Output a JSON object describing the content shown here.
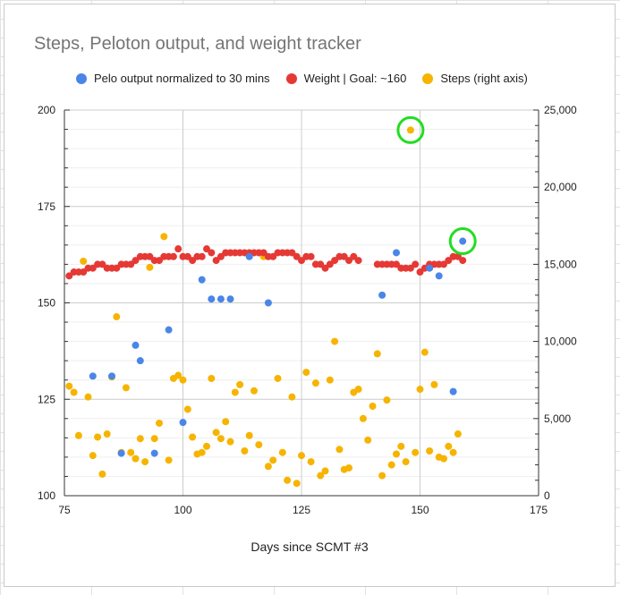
{
  "chart_data": {
    "type": "scatter",
    "title": "Steps, Peloton output, and weight tracker",
    "xlabel": "Days since SCMT #3",
    "ylabel": "",
    "xlim": [
      75,
      175
    ],
    "ylim": [
      100,
      200
    ],
    "y2lim": [
      0,
      25000
    ],
    "x_ticks": [
      "75",
      "100",
      "125",
      "150",
      "175"
    ],
    "y_ticks": [
      "100",
      "125",
      "150",
      "175",
      "200"
    ],
    "y2_ticks": [
      "0",
      "5,000",
      "10,000",
      "15,000",
      "20,000",
      "25,000"
    ],
    "grid": true,
    "legend_position": "top",
    "series": [
      {
        "name": "Pelo output normalized to 30 mins",
        "axis": "left",
        "color": "#4a86e8",
        "points": [
          [
            81,
            131
          ],
          [
            85,
            131
          ],
          [
            87,
            111
          ],
          [
            90,
            139
          ],
          [
            91,
            135
          ],
          [
            94,
            111
          ],
          [
            97,
            143
          ],
          [
            100,
            119
          ],
          [
            104,
            156
          ],
          [
            106,
            151
          ],
          [
            108,
            151
          ],
          [
            110,
            151
          ],
          [
            114,
            162
          ],
          [
            118,
            150
          ],
          [
            142,
            152
          ],
          [
            145,
            163
          ],
          [
            152,
            159
          ],
          [
            154,
            157
          ],
          [
            157,
            127
          ],
          [
            159,
            166
          ]
        ]
      },
      {
        "name": "Weight | Goal: ~160",
        "axis": "left",
        "color": "#e53935",
        "points": [
          [
            76,
            157
          ],
          [
            77,
            158
          ],
          [
            78,
            158
          ],
          [
            79,
            158
          ],
          [
            80,
            159
          ],
          [
            81,
            159
          ],
          [
            82,
            160
          ],
          [
            83,
            160
          ],
          [
            84,
            159
          ],
          [
            85,
            159
          ],
          [
            86,
            159
          ],
          [
            87,
            160
          ],
          [
            88,
            160
          ],
          [
            89,
            160
          ],
          [
            90,
            161
          ],
          [
            91,
            162
          ],
          [
            92,
            162
          ],
          [
            93,
            162
          ],
          [
            94,
            161
          ],
          [
            95,
            161
          ],
          [
            96,
            162
          ],
          [
            97,
            162
          ],
          [
            98,
            162
          ],
          [
            99,
            164
          ],
          [
            100,
            162
          ],
          [
            101,
            162
          ],
          [
            102,
            161
          ],
          [
            103,
            162
          ],
          [
            104,
            162
          ],
          [
            105,
            164
          ],
          [
            106,
            163
          ],
          [
            107,
            161
          ],
          [
            108,
            162
          ],
          [
            109,
            163
          ],
          [
            110,
            163
          ],
          [
            111,
            163
          ],
          [
            112,
            163
          ],
          [
            113,
            163
          ],
          [
            114,
            163
          ],
          [
            115,
            163
          ],
          [
            116,
            163
          ],
          [
            117,
            163
          ],
          [
            118,
            162
          ],
          [
            119,
            162
          ],
          [
            120,
            163
          ],
          [
            121,
            163
          ],
          [
            122,
            163
          ],
          [
            123,
            163
          ],
          [
            124,
            162
          ],
          [
            125,
            161
          ],
          [
            126,
            162
          ],
          [
            127,
            162
          ],
          [
            128,
            160
          ],
          [
            129,
            160
          ],
          [
            130,
            159
          ],
          [
            131,
            160
          ],
          [
            132,
            161
          ],
          [
            133,
            162
          ],
          [
            134,
            162
          ],
          [
            135,
            161
          ],
          [
            136,
            162
          ],
          [
            137,
            161
          ],
          [
            141,
            160
          ],
          [
            142,
            160
          ],
          [
            143,
            160
          ],
          [
            144,
            160
          ],
          [
            145,
            160
          ],
          [
            146,
            159
          ],
          [
            147,
            159
          ],
          [
            148,
            159
          ],
          [
            149,
            160
          ],
          [
            150,
            158
          ],
          [
            151,
            159
          ],
          [
            152,
            160
          ],
          [
            153,
            160
          ],
          [
            154,
            160
          ],
          [
            155,
            160
          ],
          [
            156,
            161
          ],
          [
            157,
            162
          ],
          [
            158,
            162
          ],
          [
            159,
            161
          ]
        ]
      },
      {
        "name": "Steps (right axis)",
        "axis": "right",
        "color": "#f6b400",
        "points": [
          [
            76,
            7100
          ],
          [
            77,
            6700
          ],
          [
            78,
            3900
          ],
          [
            79,
            15200
          ],
          [
            80,
            6400
          ],
          [
            81,
            2600
          ],
          [
            82,
            3800
          ],
          [
            83,
            1400
          ],
          [
            84,
            4000
          ],
          [
            85,
            7700
          ],
          [
            86,
            11600
          ],
          [
            87,
            2800
          ],
          [
            88,
            7000
          ],
          [
            89,
            2800
          ],
          [
            90,
            2400
          ],
          [
            91,
            3700
          ],
          [
            92,
            2200
          ],
          [
            93,
            14800
          ],
          [
            94,
            3700
          ],
          [
            95,
            4700
          ],
          [
            96,
            16800
          ],
          [
            97,
            2300
          ],
          [
            98,
            7600
          ],
          [
            99,
            7800
          ],
          [
            100,
            7500
          ],
          [
            101,
            5600
          ],
          [
            102,
            3800
          ],
          [
            103,
            2700
          ],
          [
            104,
            2800
          ],
          [
            105,
            3200
          ],
          [
            106,
            7600
          ],
          [
            107,
            4100
          ],
          [
            108,
            3700
          ],
          [
            109,
            4800
          ],
          [
            110,
            3500
          ],
          [
            111,
            6700
          ],
          [
            112,
            7200
          ],
          [
            113,
            2900
          ],
          [
            114,
            3900
          ],
          [
            115,
            6800
          ],
          [
            116,
            3300
          ],
          [
            117,
            15500
          ],
          [
            118,
            1900
          ],
          [
            119,
            2300
          ],
          [
            120,
            7600
          ],
          [
            121,
            2800
          ],
          [
            122,
            1000
          ],
          [
            123,
            6400
          ],
          [
            124,
            800
          ],
          [
            125,
            2600
          ],
          [
            126,
            8000
          ],
          [
            127,
            2200
          ],
          [
            128,
            7300
          ],
          [
            129,
            1300
          ],
          [
            130,
            1600
          ],
          [
            131,
            7500
          ],
          [
            132,
            10000
          ],
          [
            133,
            3000
          ],
          [
            134,
            1700
          ],
          [
            135,
            1800
          ],
          [
            136,
            6700
          ],
          [
            137,
            6900
          ],
          [
            138,
            5000
          ],
          [
            139,
            3600
          ],
          [
            140,
            5800
          ],
          [
            141,
            9200
          ],
          [
            142,
            1300
          ],
          [
            143,
            6200
          ],
          [
            144,
            2000
          ],
          [
            145,
            2700
          ],
          [
            146,
            3200
          ],
          [
            147,
            2200
          ],
          [
            148,
            23700
          ],
          [
            149,
            2800
          ],
          [
            150,
            6900
          ],
          [
            151,
            9300
          ],
          [
            152,
            2900
          ],
          [
            153,
            7200
          ],
          [
            154,
            2500
          ],
          [
            155,
            2400
          ],
          [
            156,
            3200
          ],
          [
            157,
            2800
          ],
          [
            158,
            4000
          ]
        ]
      }
    ],
    "annotations": [
      {
        "type": "circle",
        "color": "#22dd22",
        "x": 148,
        "y": 23700,
        "axis": "right"
      },
      {
        "type": "circle",
        "color": "#22dd22",
        "x": 159,
        "y": 166,
        "axis": "left"
      }
    ]
  }
}
